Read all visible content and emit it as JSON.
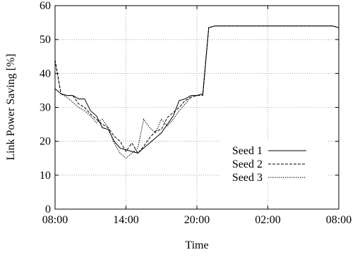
{
  "chart_data": {
    "type": "line",
    "title": "",
    "xlabel": "Time",
    "ylabel": "Link Power Saving [%]",
    "xlim": [
      "08:00",
      "08:00 (+1 day)"
    ],
    "ylim": [
      0,
      60
    ],
    "x_tick_labels": [
      "08:00",
      "14:00",
      "20:00",
      "02:00",
      "08:00"
    ],
    "y_tick_labels": [
      "0",
      "10",
      "20",
      "30",
      "40",
      "50",
      "60"
    ],
    "grid": true,
    "legend_position": "lower-right",
    "x": [
      "08:00",
      "08:30",
      "09:00",
      "09:30",
      "10:00",
      "10:30",
      "11:00",
      "11:30",
      "12:00",
      "12:30",
      "13:00",
      "13:30",
      "14:00",
      "14:30",
      "15:00",
      "15:30",
      "16:00",
      "16:30",
      "17:00",
      "17:30",
      "18:00",
      "18:30",
      "19:00",
      "19:30",
      "20:00",
      "20:30",
      "21:00",
      "21:30",
      "22:00",
      "23:00",
      "00:00",
      "01:00",
      "02:00",
      "03:00",
      "04:00",
      "05:00",
      "06:00",
      "07:00",
      "07:30",
      "08:00 (+1 day)"
    ],
    "series": [
      {
        "name": "Seed 1",
        "style": "solid",
        "values": [
          35.5,
          34,
          33.5,
          33.5,
          32.5,
          32.5,
          29,
          27.5,
          24,
          23.5,
          20,
          18,
          17.5,
          17,
          16.5,
          18,
          19.5,
          21,
          22.5,
          25,
          27.5,
          32,
          32.5,
          33.5,
          33.5,
          34,
          53.5,
          54,
          54,
          54,
          54,
          54,
          54,
          54,
          54,
          54,
          54,
          54,
          54,
          53.5
        ]
      },
      {
        "name": "Seed 2",
        "style": "dashed",
        "values": [
          44,
          34,
          33.5,
          33.5,
          31,
          30,
          28,
          26.5,
          25,
          24,
          21.5,
          20,
          17,
          19.5,
          16.5,
          18.5,
          21,
          23,
          23.5,
          27,
          28.5,
          30,
          32,
          33,
          33.5,
          33.5,
          53.5,
          54,
          54,
          54,
          54,
          54,
          54,
          54,
          54,
          54,
          54,
          54,
          54,
          53.5
        ]
      },
      {
        "name": "Seed 3",
        "style": "dotted",
        "values": [
          44,
          34,
          33,
          31.5,
          30,
          29,
          27.5,
          25.5,
          26.5,
          24,
          19.5,
          16.5,
          15,
          16.5,
          18,
          26.5,
          24,
          22.5,
          26.5,
          24.5,
          26.5,
          29,
          31,
          33,
          33.5,
          34,
          53.5,
          54,
          54,
          54,
          54,
          54,
          54,
          54,
          54,
          54,
          54,
          54,
          54,
          53.5
        ]
      }
    ],
    "colors": {
      "axis": "#000000",
      "grid": "#999999",
      "line": "#000000",
      "background": "#ffffff"
    }
  }
}
